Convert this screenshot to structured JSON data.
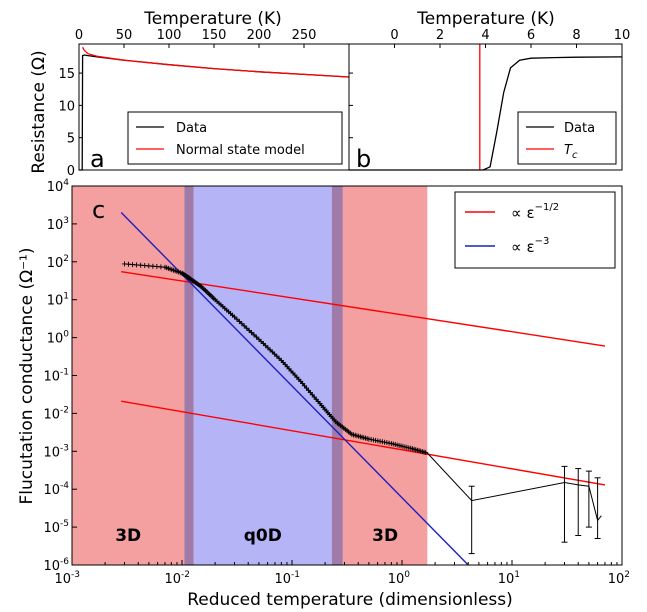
{
  "figure": {
    "top_xlabel_a": "Temperature (K)",
    "top_xlabel_b": "Temperature (K)",
    "ylabel_top": "Resistance (Ω)",
    "ylabel_bottom": "Flucutation conductance (Ω⁻¹)",
    "xlabel_bottom": "Reduced temperature (dimensionless)"
  },
  "chart_data": [
    {
      "id": "a",
      "panel_label": "a",
      "type": "line",
      "xlabel": "Temperature (K)",
      "ylabel": "Resistance (Ω)",
      "xlim": [
        0,
        300
      ],
      "ylim": [
        0,
        19.5
      ],
      "xticks": [
        0,
        50,
        100,
        150,
        200,
        250
      ],
      "yticks": [
        0,
        5,
        10,
        15
      ],
      "legend_position": "lower-right",
      "series": [
        {
          "name": "Data",
          "color": "#000000",
          "x": [
            0,
            3.5,
            4,
            6,
            10,
            20,
            50,
            100,
            150,
            200,
            250,
            300
          ],
          "y": [
            0,
            0,
            17.7,
            17.8,
            17.7,
            17.5,
            17.0,
            16.3,
            15.7,
            15.2,
            14.8,
            14.4
          ]
        },
        {
          "name": "Normal state model",
          "color": "#ff0000",
          "x": [
            4,
            6,
            10,
            20,
            50,
            100,
            150,
            200,
            250,
            300
          ],
          "y": [
            19.0,
            18.5,
            18.0,
            17.6,
            17.0,
            16.3,
            15.7,
            15.2,
            14.8,
            14.4
          ]
        }
      ]
    },
    {
      "id": "b",
      "panel_label": "b",
      "type": "line",
      "xlabel": "Temperature (K)",
      "xlim": [
        -2,
        10
      ],
      "ylim": [
        0,
        19.5
      ],
      "xticks": [
        0,
        2,
        4,
        6,
        8,
        10
      ],
      "legend_position": "lower-right",
      "series": [
        {
          "name": "Data",
          "color": "#000000",
          "x": [
            -2,
            3.9,
            4.2,
            4.5,
            4.8,
            5.1,
            5.5,
            6.0,
            7,
            8,
            10
          ],
          "y": [
            0,
            0,
            0.5,
            6,
            12,
            15.8,
            17.0,
            17.3,
            17.4,
            17.45,
            17.5
          ]
        },
        {
          "name": "T_c",
          "color": "#ff0000",
          "x": [
            3.75,
            3.75
          ],
          "y": [
            0,
            19.5
          ]
        }
      ]
    },
    {
      "id": "c",
      "panel_label": "c",
      "type": "line",
      "xscale": "log",
      "yscale": "log",
      "xlabel": "Reduced temperature (dimensionless)",
      "ylabel": "Flucutation conductance (Ω⁻¹)",
      "xlim": [
        0.001,
        100
      ],
      "ylim": [
        1e-06,
        10000
      ],
      "xtick_exponents": [
        -3,
        -2,
        -1,
        0,
        1,
        2
      ],
      "ytick_exponents": [
        -6,
        -5,
        -4,
        -3,
        -2,
        -1,
        0,
        1,
        2,
        3,
        4
      ],
      "legend_position": "top-right",
      "regions": [
        {
          "label": "3D",
          "color": "#f4a0a0",
          "x": [
            0.001,
            0.0105
          ]
        },
        {
          "label": "",
          "color": "#a07aa8",
          "x": [
            0.0105,
            0.0128
          ]
        },
        {
          "label": "q0D",
          "color": "#b4b4f6",
          "x": [
            0.0128,
            0.23
          ]
        },
        {
          "label": "",
          "color": "#a07aa8",
          "x": [
            0.23,
            0.29
          ]
        },
        {
          "label": "3D",
          "color": "#f4a0a0",
          "x": [
            0.29,
            1.7
          ]
        }
      ],
      "fits": [
        {
          "name": "∝ ε^{-1/2}",
          "color": "#ff0000",
          "x": [
            0.0028,
            70
          ],
          "y": [
            55,
            0.6
          ]
        },
        {
          "name": "",
          "color": "#ff0000",
          "x": [
            0.0028,
            70
          ],
          "y": [
            0.021,
            0.00013
          ]
        },
        {
          "name": "∝ ε^{-3}",
          "color": "#1f1fbf",
          "x": [
            0.0028,
            4.0
          ],
          "y": [
            2000,
            1e-06
          ]
        }
      ],
      "data": {
        "name": "Data",
        "color": "#000000",
        "x": [
          0.003,
          0.007,
          0.01,
          0.012,
          0.015,
          0.02,
          0.03,
          0.05,
          0.08,
          0.12,
          0.18,
          0.25,
          0.35,
          0.5,
          0.8,
          1.2,
          1.7,
          4.3,
          30,
          40,
          50,
          60,
          65
        ],
        "y": [
          88,
          72,
          50,
          35,
          22,
          10,
          3.5,
          0.9,
          0.25,
          0.07,
          0.018,
          0.006,
          0.0028,
          0.0021,
          0.0016,
          0.0012,
          0.0009,
          5e-05,
          0.00015,
          0.00013,
          0.00012,
          1.5e-05,
          2e-05
        ]
      }
    }
  ]
}
